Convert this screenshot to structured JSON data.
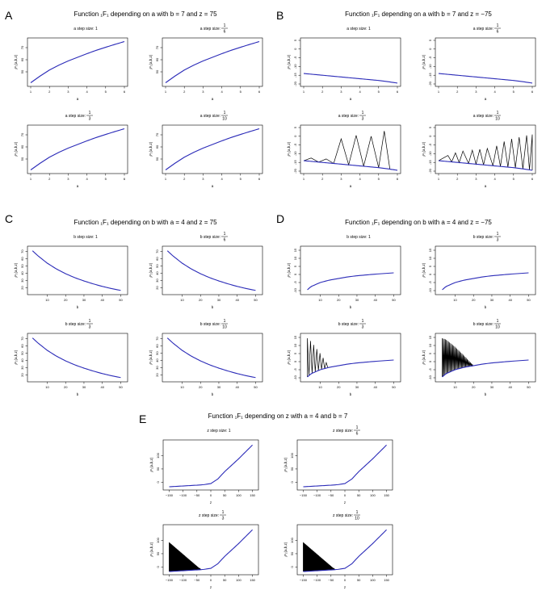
{
  "colors": {
    "smooth": "#2b2bb8",
    "wiggle": "#000000",
    "axis": "#000000"
  },
  "ylabel": "₁F₁(a,b,z)",
  "panels": [
    {
      "letter": "A",
      "title_pre": "Function",
      "title_fn": "₁F₁",
      "title_post": "depending on a with b = 7 and z = 75",
      "xlabel": "a",
      "xticks": [
        "1",
        "2",
        "3",
        "4",
        "5",
        "6"
      ],
      "xlim": [
        1,
        6
      ],
      "yticks": [
        "50",
        "60",
        "70"
      ],
      "ylim": [
        40,
        76
      ],
      "subplots": [
        {
          "step_label": "a step size: 1",
          "step_frac": ""
        },
        {
          "step_label": "a step size:",
          "step_frac": [
            "1",
            "6"
          ]
        },
        {
          "step_label": "a step size:",
          "step_frac": [
            "1",
            "3"
          ]
        },
        {
          "step_label": "a step size:",
          "step_frac": [
            "1",
            "10"
          ]
        }
      ],
      "chart_data": {
        "type": "line",
        "x": [
          1,
          1.5,
          2,
          2.5,
          3,
          3.5,
          4,
          4.5,
          5,
          5.5,
          6
        ],
        "series": [
          {
            "values": [
              41,
              46.5,
              51.5,
              55.5,
              59,
              62,
              65,
              67.8,
              70.3,
              72.7,
              75
            ]
          }
        ]
      }
    },
    {
      "letter": "B",
      "title_pre": "Function",
      "title_fn": "₁F₁",
      "title_post": "depending on a with b = 7 and z = −75",
      "xlabel": "a",
      "xticks": [
        "1",
        "2",
        "3",
        "4",
        "5",
        "6"
      ],
      "xlim": [
        1,
        6
      ],
      "yticks": [
        "-20",
        "-15",
        "-10",
        "-5",
        "0",
        "5"
      ],
      "ylim": [
        -20,
        5
      ],
      "subplots": [
        {
          "step_label": "a step size: 1",
          "step_frac": ""
        },
        {
          "step_label": "a step size:",
          "step_frac": [
            "1",
            "6"
          ]
        },
        {
          "step_label": "a step size:",
          "step_frac": [
            "1",
            "3"
          ]
        },
        {
          "step_label": "a step size:",
          "step_frac": [
            "1",
            "10"
          ]
        }
      ],
      "chart_data": {
        "type": "line",
        "x": [
          1,
          1.5,
          2,
          2.5,
          3,
          3.5,
          4,
          4.5,
          5,
          5.5,
          6
        ],
        "series": [
          {
            "values": [
              -14,
              -14.5,
              -15,
              -15.5,
              -16,
              -16.5,
              -17,
              -17.5,
              -18,
              -18.7,
              -19.5
            ]
          }
        ],
        "wiggle": [
          null,
          null,
          {
            "peaks_x": [
              1.4,
              2.2,
              3.0,
              3.8,
              4.6,
              5.3
            ],
            "peaks_y": [
              -12.5,
              -13.0,
              -1.5,
              0.5,
              0,
              3
            ],
            "troughs_x": [
              1.8,
              2.6,
              3.4,
              4.2,
              5.0,
              5.6
            ]
          },
          {
            "peaks_x": [
              1.5,
              1.9,
              2.3,
              2.8,
              3.2,
              3.6,
              4.1,
              4.5,
              4.9,
              5.3,
              5.7,
              6.0
            ],
            "peaks_y": [
              -11,
              -9.5,
              -8.5,
              -8,
              -7.5,
              -7,
              -5.5,
              -3,
              -1.5,
              -0.5,
              0.5,
              1
            ],
            "troughs_x": [
              1.7,
              2.1,
              2.6,
              3.0,
              3.4,
              3.9,
              4.3,
              4.7,
              5.1,
              5.5,
              5.85
            ]
          }
        ]
      }
    },
    {
      "letter": "C",
      "title_pre": "Function",
      "title_fn": "₁F₁",
      "title_post": "depending on b with a = 4 and z = 75",
      "xlabel": "b",
      "xticks": [
        "10",
        "20",
        "30",
        "40",
        "50"
      ],
      "xlim": [
        1,
        52
      ],
      "yticks": [
        "20",
        "30",
        "40",
        "50",
        "60",
        "70"
      ],
      "ylim": [
        14,
        74
      ],
      "subplots": [
        {
          "step_label": "b step size: 1",
          "step_frac": ""
        },
        {
          "step_label": "b step size:",
          "step_frac": [
            "1",
            "6"
          ]
        },
        {
          "step_label": "b step size:",
          "step_frac": [
            "1",
            "3"
          ]
        },
        {
          "step_label": "b step size:",
          "step_frac": [
            "1",
            "10"
          ]
        }
      ],
      "chart_data": {
        "type": "line",
        "x": [
          2,
          5,
          10,
          15,
          20,
          25,
          30,
          35,
          40,
          45,
          50
        ],
        "series": [
          {
            "values": [
              71,
              64,
              54,
              46,
              39.5,
              34,
              29.5,
              25.5,
              22,
              19,
              16.5
            ]
          }
        ]
      }
    },
    {
      "letter": "D",
      "title_pre": "Function",
      "title_fn": "₁F₁",
      "title_post": "depending on b with a = 4 and z = −75",
      "xlabel": "b",
      "xticks": [
        "10",
        "20",
        "30",
        "40",
        "50"
      ],
      "xlim": [
        1,
        52
      ],
      "yticks": [
        "-10",
        "-5",
        "0",
        "5",
        "10",
        "15"
      ],
      "ylim": [
        -11,
        16
      ],
      "subplots": [
        {
          "step_label": "b step size: 1",
          "step_frac": ""
        },
        {
          "step_label": "b step size:",
          "step_frac": [
            "1",
            "3"
          ]
        },
        {
          "step_label": "b step size:",
          "step_frac": [
            "1",
            "3"
          ]
        },
        {
          "step_label": "b step size:",
          "step_frac": [
            "1",
            "10"
          ]
        }
      ],
      "chart_data": {
        "type": "line",
        "x": [
          3,
          5,
          10,
          15,
          20,
          25,
          30,
          35,
          40,
          45,
          50
        ],
        "series": [
          {
            "values": [
              -9.5,
              -7.5,
              -5,
              -3.5,
              -2.5,
              -1.5,
              -0.8,
              -0.3,
              0.2,
              0.6,
              1
            ]
          }
        ],
        "wiggle": [
          null,
          null,
          {
            "range": [
              3,
              15
            ],
            "amp_start": 24,
            "spikes": 14
          },
          {
            "range": [
              3,
              20
            ],
            "amp_start": 24,
            "spikes": 60
          }
        ]
      }
    },
    {
      "letter": "E",
      "title_pre": "Function",
      "title_fn": "₁F₁",
      "title_post": "depending on z with a = 4 and b = 7",
      "xlabel": "z",
      "xticks": [
        "−150",
        "−100",
        "−50",
        "0",
        "50",
        "100",
        "150"
      ],
      "xlim": [
        -160,
        160
      ],
      "yticks": [
        "0",
        "50",
        "100"
      ],
      "ylim": [
        -20,
        150
      ],
      "subplots": [
        {
          "step_label": "z step size: 1",
          "step_frac": ""
        },
        {
          "step_label": "z step size:",
          "step_frac": [
            "1",
            "6"
          ]
        },
        {
          "step_label": "z step size:",
          "step_frac": [
            "1",
            "3"
          ]
        },
        {
          "step_label": "z step size:",
          "step_frac": [
            "1",
            "10"
          ]
        }
      ],
      "chart_data": {
        "type": "line",
        "x": [
          -150,
          -100,
          -50,
          -25,
          0,
          25,
          50,
          100,
          150
        ],
        "series": [
          {
            "values": [
              -17,
              -14,
              -11,
              -9,
              -5,
              12,
              40,
              88,
              140
            ]
          }
        ],
        "wiggle": [
          null,
          null,
          {
            "range": [
              -150,
              -35
            ],
            "amp_start": 110,
            "spikes": 120
          },
          {
            "range": [
              -150,
              -35
            ],
            "amp_start": 110,
            "spikes": 120
          }
        ]
      }
    }
  ]
}
